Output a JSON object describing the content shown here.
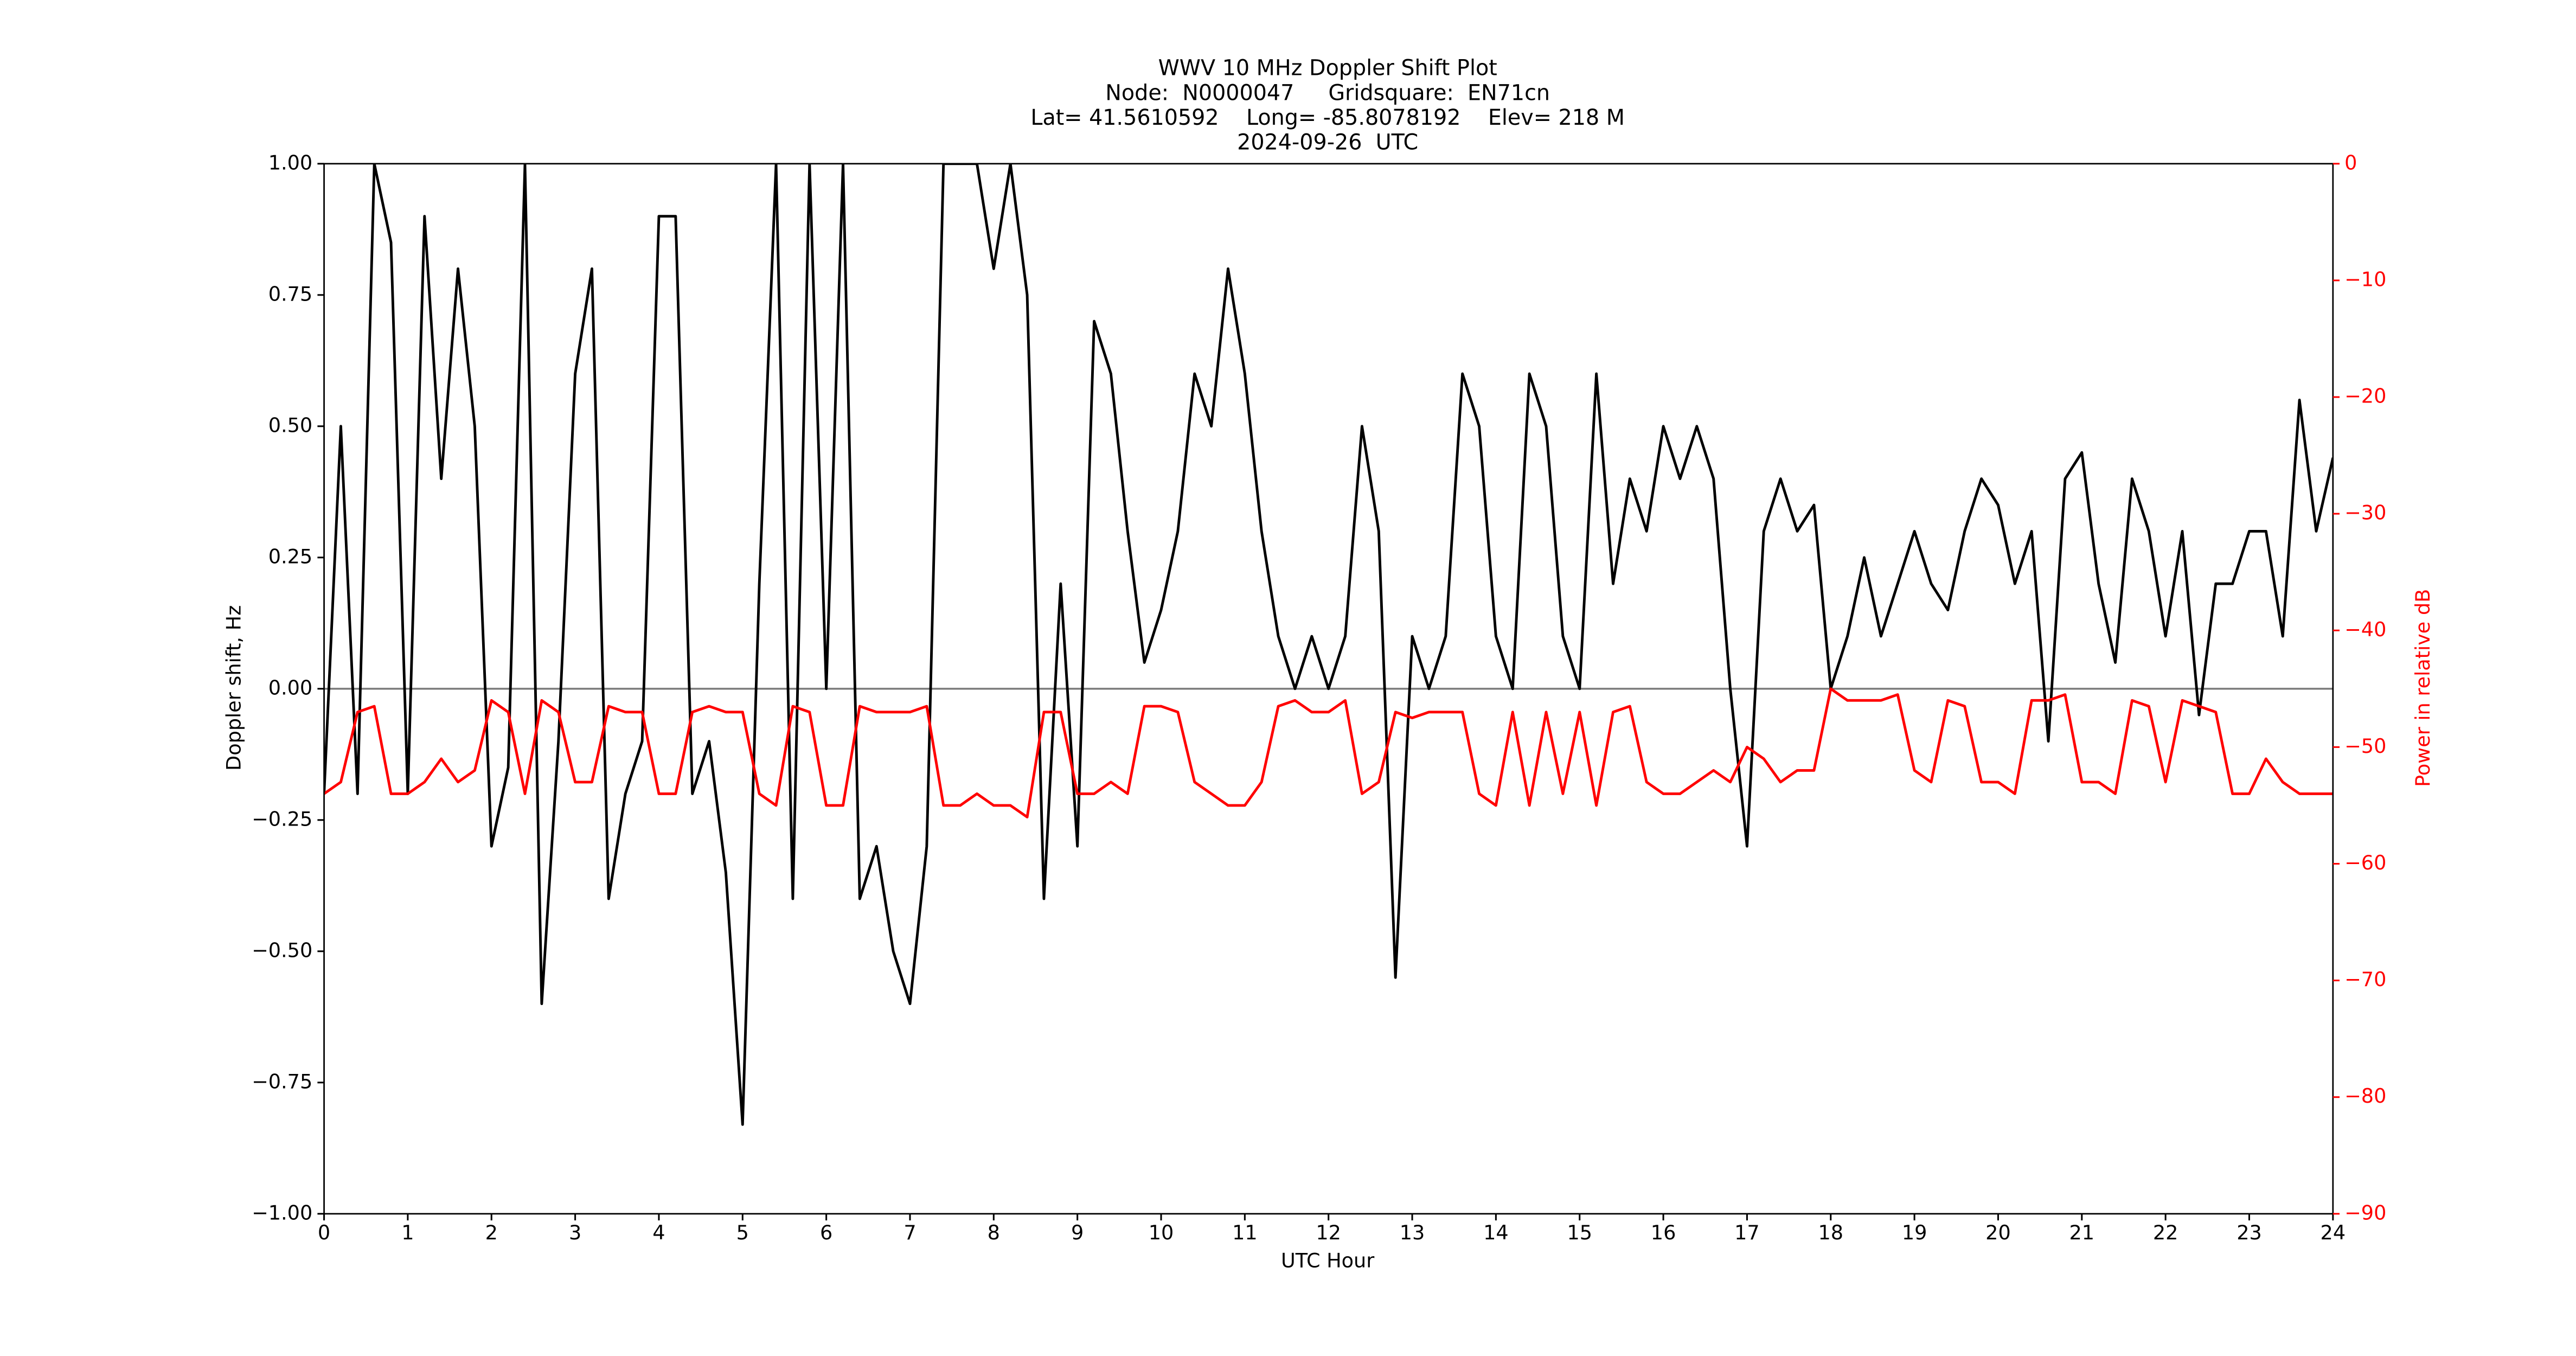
{
  "chart_data": {
    "type": "line",
    "title": [
      "WWV 10 MHz Doppler Shift Plot",
      "Node:  N0000047     Gridsquare:  EN71cn",
      "Lat= 41.5610592    Long= -85.8078192    Elev= 218 M",
      "2024-09-26  UTC"
    ],
    "x_label": "UTC Hour",
    "y_label": "Doppler shift, Hz",
    "y2_label": "Power in relative dB",
    "xlim": [
      0,
      24
    ],
    "xticks": [
      0,
      1,
      2,
      3,
      4,
      5,
      6,
      7,
      8,
      9,
      10,
      11,
      12,
      13,
      14,
      15,
      16,
      17,
      18,
      19,
      20,
      21,
      22,
      23,
      24
    ],
    "ylim": [
      -1,
      1
    ],
    "yticks": [
      {
        "value": -1,
        "label": "−1.00"
      },
      {
        "value": -0.75,
        "label": "−0.75"
      },
      {
        "value": -0.5,
        "label": "−0.50"
      },
      {
        "value": -0.25,
        "label": "−0.25"
      },
      {
        "value": 0,
        "label": "0.00"
      },
      {
        "value": 0.25,
        "label": "0.25"
      },
      {
        "value": 0.5,
        "label": "0.50"
      },
      {
        "value": 0.75,
        "label": "0.75"
      },
      {
        "value": 1,
        "label": "1.00"
      }
    ],
    "y2lim": [
      -90,
      0
    ],
    "y2ticks": [
      {
        "value": -90,
        "label": "−90"
      },
      {
        "value": -80,
        "label": "−80"
      },
      {
        "value": -70,
        "label": "−70"
      },
      {
        "value": -60,
        "label": "−60"
      },
      {
        "value": -50,
        "label": "−50"
      },
      {
        "value": -40,
        "label": "−40"
      },
      {
        "value": -30,
        "label": "−30"
      },
      {
        "value": -20,
        "label": "−20"
      },
      {
        "value": -10,
        "label": "−10"
      },
      0
    ],
    "reference_line": 0,
    "y2_color": "#ff0000",
    "x": [
      0,
      0.2,
      0.4,
      0.6,
      0.8,
      1,
      1.2,
      1.4,
      1.6,
      1.8,
      2,
      2.2,
      2.4,
      2.6,
      2.8,
      3,
      3.2,
      3.4,
      3.6,
      3.8,
      4,
      4.2,
      4.4,
      4.6,
      4.8,
      5,
      5.2,
      5.4,
      5.6,
      5.8,
      6,
      6.2,
      6.4,
      6.6,
      6.8,
      7,
      7.2,
      7.4,
      7.6,
      7.8,
      8,
      8.2,
      8.4,
      8.6,
      8.8,
      9,
      9.2,
      9.4,
      9.6,
      9.8,
      10,
      10.2,
      10.4,
      10.6,
      10.8,
      11,
      11.2,
      11.4,
      11.6,
      11.8,
      12,
      12.2,
      12.4,
      12.6,
      12.8,
      13,
      13.2,
      13.4,
      13.6,
      13.8,
      14,
      14.2,
      14.4,
      14.6,
      14.8,
      15,
      15.2,
      15.4,
      15.6,
      15.8,
      16,
      16.2,
      16.4,
      16.6,
      16.8,
      17,
      17.2,
      17.4,
      17.6,
      17.8,
      18,
      18.2,
      18.4,
      18.6,
      18.8,
      19,
      19.2,
      19.4,
      19.6,
      19.8,
      20,
      20.2,
      20.4,
      20.6,
      20.8,
      21,
      21.2,
      21.4,
      21.6,
      21.8,
      22,
      22.2,
      22.4,
      22.6,
      22.8,
      23,
      23.2,
      23.4,
      23.6,
      23.8,
      24
    ],
    "series": [
      {
        "color": "#000000",
        "values": [
          -0.2,
          0.5,
          -0.2,
          1.0,
          0.85,
          -0.2,
          0.9,
          0.4,
          0.8,
          0.5,
          -0.3,
          -0.15,
          1.0,
          -0.6,
          -0.1,
          0.6,
          0.8,
          -0.4,
          -0.2,
          -0.1,
          0.9,
          0.9,
          -0.2,
          -0.1,
          -0.35,
          -0.83,
          0.2,
          1.0,
          -0.4,
          1.0,
          0.0,
          1.0,
          -0.4,
          -0.3,
          -0.5,
          -0.6,
          -0.3,
          1.0,
          1.0,
          1.0,
          0.8,
          1.0,
          0.75,
          -0.4,
          0.2,
          -0.3,
          0.7,
          0.6,
          0.3,
          0.05,
          0.15,
          0.3,
          0.6,
          0.5,
          0.8,
          0.6,
          0.3,
          0.1,
          0.0,
          0.1,
          0.0,
          0.1,
          0.5,
          0.3,
          -0.55,
          0.1,
          0.0,
          0.1,
          0.6,
          0.5,
          0.1,
          0.0,
          0.6,
          0.5,
          0.1,
          0.0,
          0.6,
          0.2,
          0.4,
          0.3,
          0.5,
          0.4,
          0.5,
          0.4,
          0.0,
          -0.3,
          0.3,
          0.4,
          0.3,
          0.35,
          0.0,
          0.1,
          0.25,
          0.1,
          0.2,
          0.3,
          0.2,
          0.15,
          0.3,
          0.4,
          0.35,
          0.2,
          0.3,
          -0.1,
          0.4,
          0.45,
          0.2,
          0.05,
          0.4,
          0.3,
          0.1,
          0.3,
          -0.05,
          0.2,
          0.2,
          0.3,
          0.3,
          0.1,
          0.55,
          0.3,
          0.44
        ]
      },
      {
        "color": "#ff0000",
        "axis": "y2",
        "values": [
          -54,
          -53,
          -47,
          -46.5,
          -54,
          -54,
          -53,
          -51,
          -53,
          -52,
          -46,
          -47,
          -54,
          -46,
          -47,
          -53,
          -53,
          -46.5,
          -47,
          -47,
          -54,
          -54,
          -47,
          -46.5,
          -47,
          -47,
          -54,
          -55,
          -46.5,
          -47,
          -55,
          -55,
          -46.5,
          -47,
          -47,
          -47,
          -46.5,
          -55,
          -55,
          -54,
          -55,
          -55,
          -56,
          -47,
          -47,
          -54,
          -54,
          -53,
          -54,
          -46.5,
          -46.5,
          -47,
          -53,
          -54,
          -55,
          -55,
          -53,
          -46.5,
          -46,
          -47,
          -47,
          -46,
          -54,
          -53,
          -47,
          -47.5,
          -47,
          -47,
          -47,
          -54,
          -55,
          -47,
          -55,
          -47,
          -54,
          -47,
          -55,
          -47,
          -46.5,
          -53,
          -54,
          -54,
          -53,
          -52,
          -53,
          -50,
          -51,
          -53,
          -52,
          -52,
          -45,
          -46,
          -46,
          -46,
          -45.5,
          -52,
          -53,
          -46,
          -46.5,
          -53,
          -53,
          -54,
          -46,
          -46,
          -45.5,
          -53,
          -53,
          -54,
          -46,
          -46.5,
          -53,
          -46,
          -46.5,
          -47,
          -54,
          -54,
          -51,
          -53,
          -54,
          -54,
          -54
        ]
      }
    ]
  }
}
